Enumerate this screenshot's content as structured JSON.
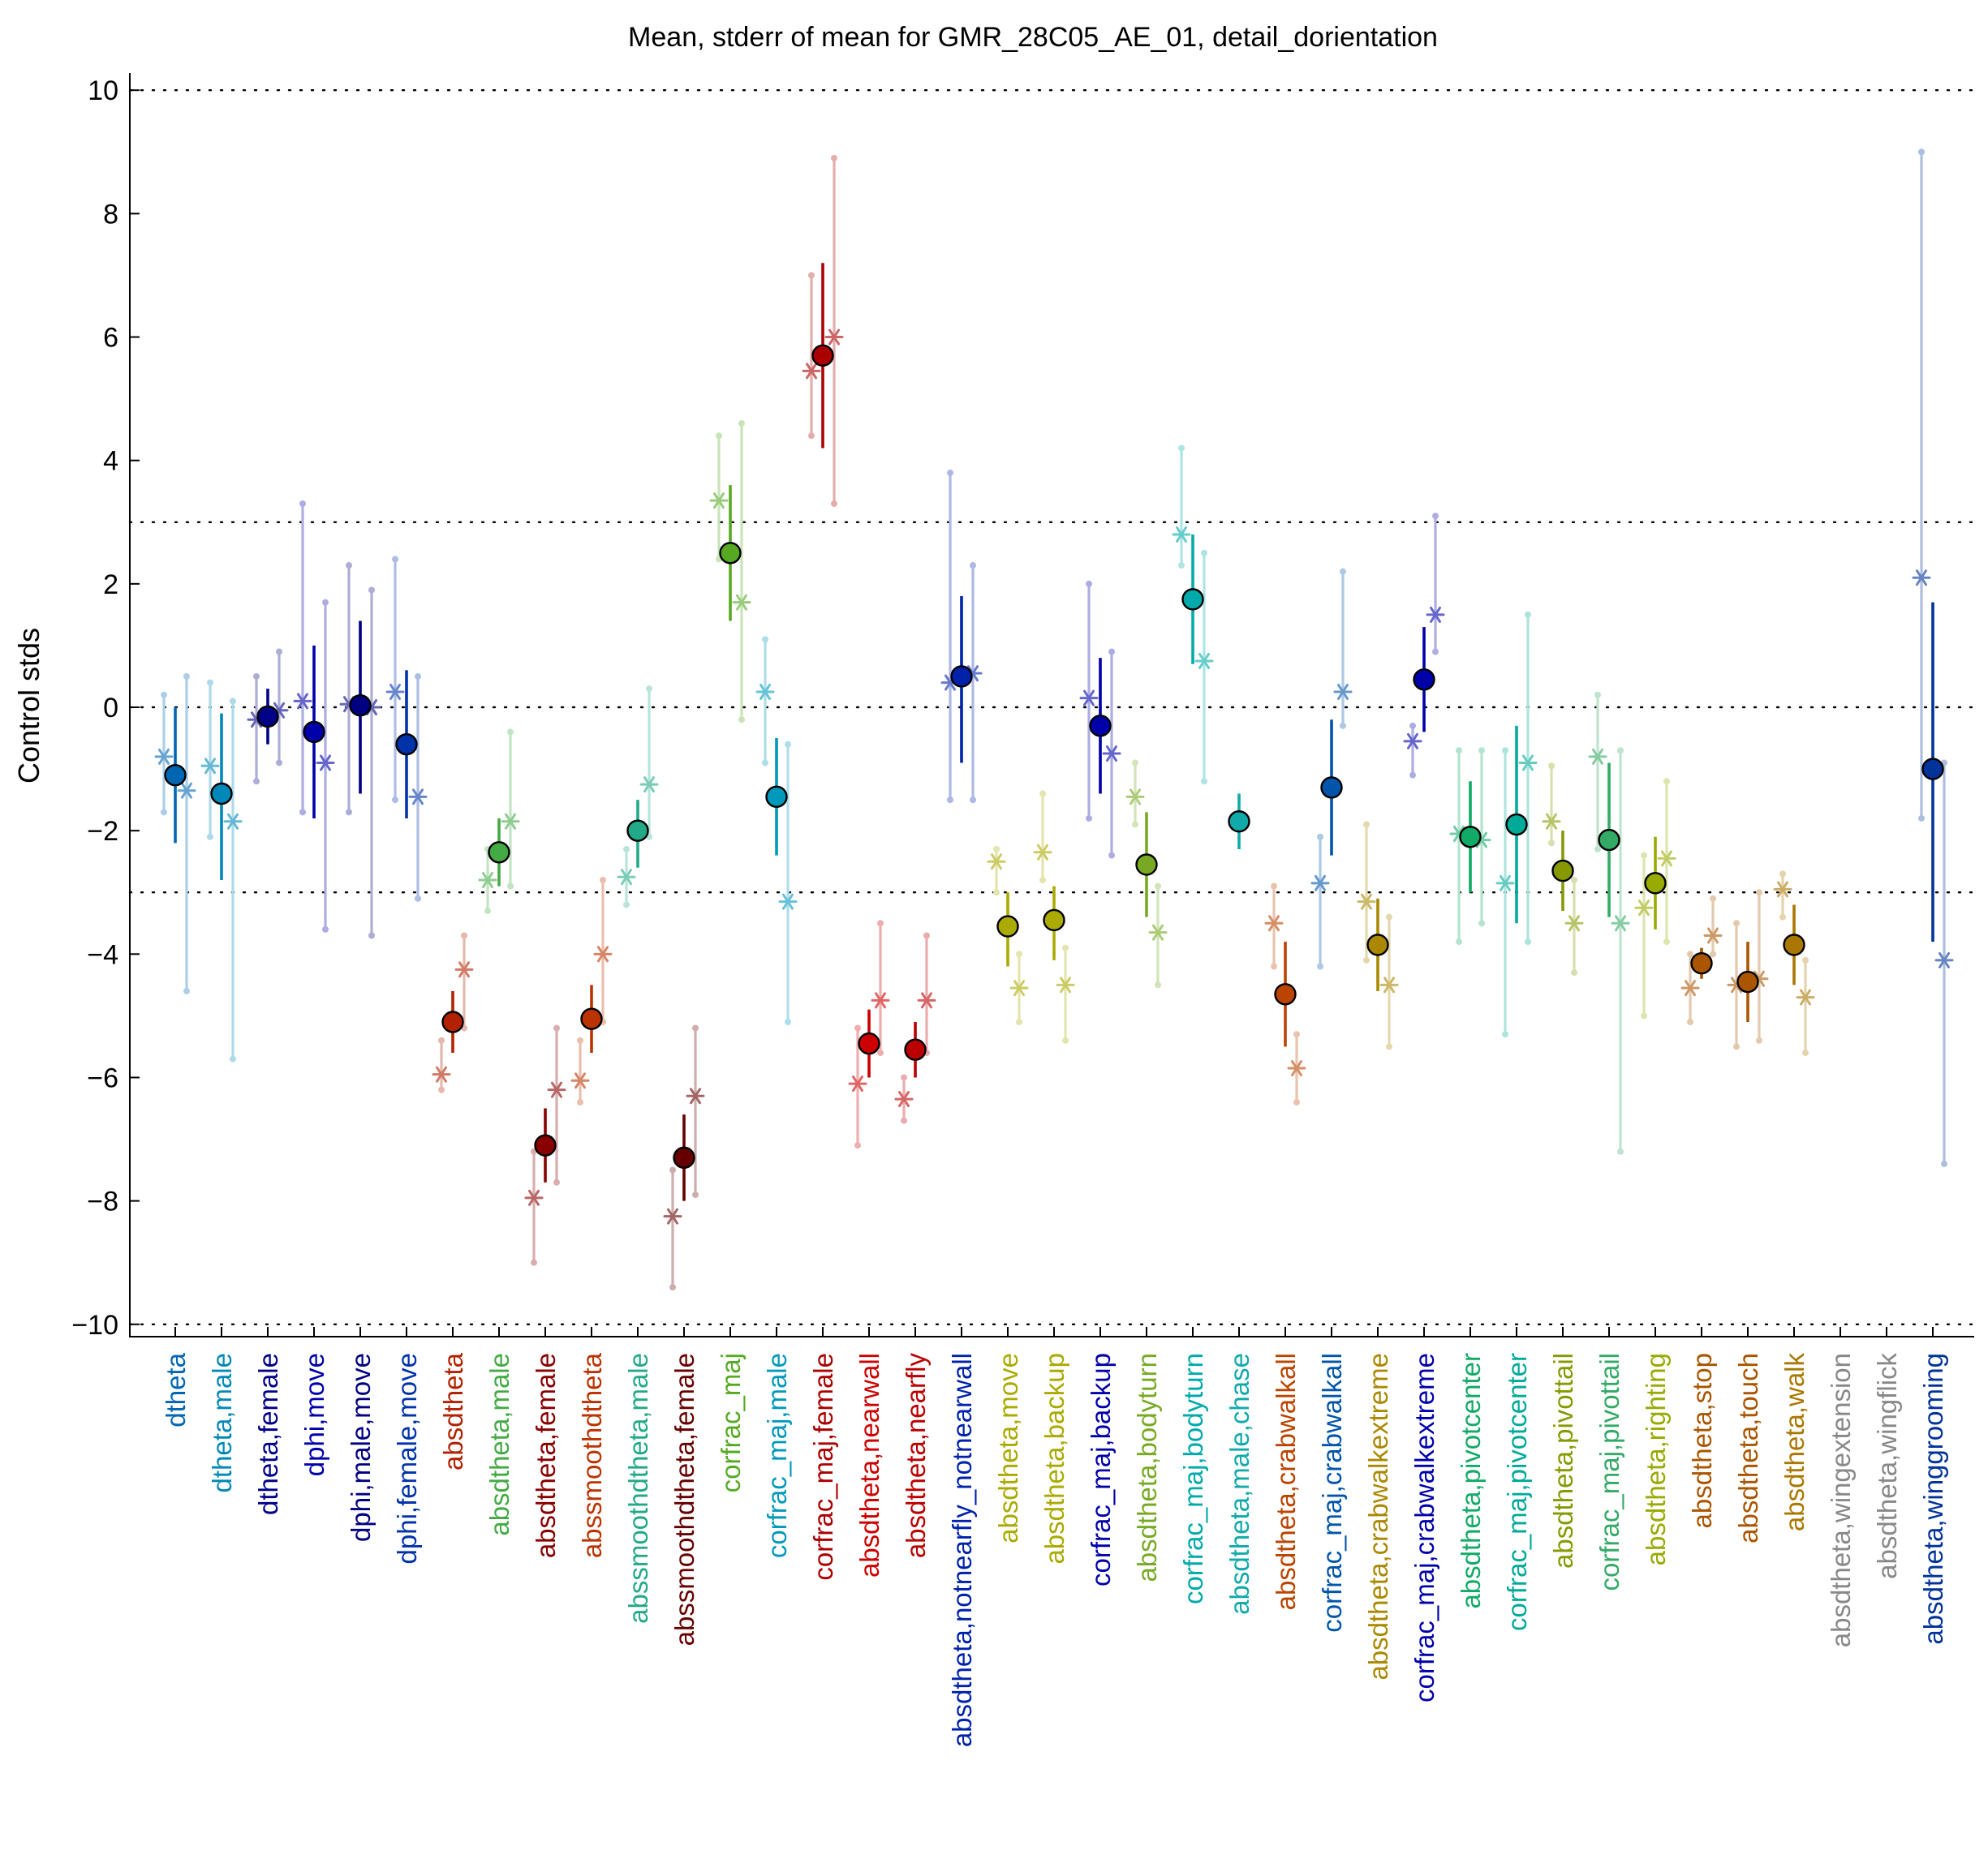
{
  "chart_data": {
    "type": "scatter",
    "title": "Mean, stderr of mean for GMR_28C05_AE_01, detail_dorientation",
    "ylabel": "Control stds",
    "xlabel": "",
    "ylim": [
      -10.2,
      10.2
    ],
    "yticks": [
      -10,
      -8,
      -6,
      -4,
      -2,
      0,
      2,
      4,
      6,
      8,
      10
    ],
    "ytick_labels": [
      "−10",
      "−8",
      "−6",
      "−4",
      "−2",
      "0",
      "2",
      "4",
      "6",
      "8",
      "10"
    ],
    "reference_lines": [
      -10,
      -3,
      0,
      3,
      10
    ],
    "grid": "dotted horizontal lines",
    "categories": [
      "dtheta",
      "dtheta,male",
      "dtheta,female",
      "dphi,move",
      "dphi,male,move",
      "dphi,female,move",
      "absdtheta",
      "absdtheta,male",
      "absdtheta,female",
      "abssmoothdtheta",
      "abssmoothdtheta,male",
      "abssmoothdtheta,female",
      "corfrac_maj",
      "corfrac_maj,male",
      "corfrac_maj,female",
      "absdtheta,nearwall",
      "absdtheta,nearfly",
      "absdtheta,notnearfly_notnearwall",
      "absdtheta,move",
      "absdtheta,backup",
      "corfrac_maj,backup",
      "absdtheta,bodyturn",
      "corfrac_maj,bodyturn",
      "absdtheta,male,chase",
      "absdtheta,crabwalkall",
      "corfrac_maj,crabwalkall",
      "absdtheta,crabwalkextreme",
      "corfrac_maj,crabwalkextreme",
      "absdtheta,pivotcenter",
      "corfrac_maj,pivotcenter",
      "absdtheta,pivottail",
      "corfrac_maj,pivottail",
      "absdtheta,righting",
      "absdtheta,stop",
      "absdtheta,touch",
      "absdtheta,walk",
      "absdtheta,wingextension",
      "absdtheta,wingflick",
      "absdtheta,winggrooming"
    ],
    "colors": [
      "#0066b3",
      "#0088b8",
      "#000088",
      "#0000aa",
      "#000080",
      "#0033aa",
      "#b22200",
      "#44aa44",
      "#880000",
      "#bb3300",
      "#22aa88",
      "#660000",
      "#55aa22",
      "#0099bb",
      "#aa0000",
      "#cc0000",
      "#bb0000",
      "#0022aa",
      "#aaaa00",
      "#aaaa00",
      "#0000aa",
      "#77aa22",
      "#00aaaa",
      "#11aaaa",
      "#bb4400",
      "#0055aa",
      "#aa8800",
      "#0000aa",
      "#11aa66",
      "#00aa99",
      "#889900",
      "#33aa66",
      "#99aa00",
      "#aa5500",
      "#aa5500",
      "#aa7700",
      "#888888",
      "#888888",
      "#003399"
    ],
    "series": [
      {
        "marker": "circle",
        "values": [
          -1.1,
          -1.4,
          -0.15,
          -0.4,
          0.03,
          -0.6,
          -5.1,
          -2.35,
          -7.1,
          -5.05,
          -2.0,
          -7.3,
          2.5,
          -1.45,
          5.7,
          -5.45,
          -5.55,
          0.5,
          -3.55,
          -3.45,
          -0.3,
          -2.55,
          1.75,
          -1.85,
          -4.65,
          -1.3,
          -3.85,
          0.45,
          -2.1,
          -1.9,
          -2.65,
          -2.15,
          -2.85,
          -4.15,
          -4.45,
          -3.85,
          null,
          null,
          -1.0
        ],
        "err_low": [
          -2.2,
          -2.8,
          -0.6,
          -1.8,
          -1.4,
          -1.8,
          -5.6,
          -2.9,
          -7.7,
          -5.6,
          -2.6,
          -8.0,
          1.4,
          -2.4,
          4.2,
          -6.0,
          -6.0,
          -0.9,
          -4.2,
          -4.1,
          -1.4,
          -3.4,
          0.7,
          -2.3,
          -5.5,
          -2.4,
          -4.6,
          -0.4,
          -3.0,
          -3.5,
          -3.3,
          -3.4,
          -3.6,
          -4.4,
          -5.1,
          -4.5,
          null,
          null,
          -3.8
        ],
        "err_high": [
          0.0,
          -0.1,
          0.3,
          1.0,
          1.4,
          0.6,
          -4.6,
          -1.8,
          -6.5,
          -4.5,
          -1.5,
          -6.6,
          3.6,
          -0.5,
          7.2,
          -4.9,
          -5.1,
          1.8,
          -3.0,
          -2.9,
          0.8,
          -1.7,
          2.8,
          -1.4,
          -3.8,
          -0.2,
          -3.1,
          1.3,
          -1.2,
          -0.3,
          -2.0,
          -0.9,
          -2.1,
          -3.9,
          -3.8,
          -3.2,
          null,
          null,
          1.7
        ]
      },
      {
        "marker": "asterisk",
        "values": [
          -0.8,
          -0.95,
          -0.2,
          0.1,
          0.05,
          0.25,
          -5.95,
          -2.8,
          -7.95,
          -6.05,
          -2.75,
          -8.25,
          3.35,
          0.25,
          5.45,
          -6.1,
          -6.35,
          0.4,
          -2.5,
          -2.35,
          0.15,
          -1.45,
          2.8,
          null,
          -3.5,
          -2.85,
          -3.15,
          -0.55,
          -2.05,
          -2.85,
          -1.85,
          -0.8,
          -3.25,
          -4.55,
          -4.5,
          -2.95,
          null,
          null,
          2.1
        ],
        "err_low": [
          -1.7,
          -2.1,
          -1.2,
          -1.7,
          -1.7,
          -1.5,
          -6.2,
          -3.3,
          -9.0,
          -6.4,
          -3.2,
          -9.4,
          2.4,
          -0.9,
          4.4,
          -7.1,
          -6.7,
          -1.5,
          -3.0,
          -2.8,
          -1.8,
          -1.9,
          2.3,
          null,
          -4.2,
          -4.2,
          -4.1,
          -1.1,
          -3.8,
          -5.3,
          -2.2,
          -2.3,
          -5.0,
          -5.1,
          -5.5,
          -3.4,
          null,
          null,
          -1.8
        ],
        "err_high": [
          0.2,
          0.4,
          0.5,
          3.3,
          2.3,
          2.4,
          -5.4,
          -2.3,
          -7.2,
          -5.4,
          -2.3,
          -7.5,
          4.4,
          1.1,
          7.0,
          -5.2,
          -6.0,
          3.8,
          -2.3,
          -1.4,
          2.0,
          -0.9,
          4.2,
          null,
          -2.9,
          -2.1,
          -1.9,
          -0.3,
          -0.7,
          -0.7,
          -0.95,
          0.2,
          -2.4,
          -4.0,
          -3.5,
          -2.7,
          null,
          null,
          9.0
        ]
      },
      {
        "marker": "asterisk",
        "values": [
          -1.35,
          -1.85,
          -0.05,
          -0.9,
          0.0,
          -1.45,
          -4.25,
          -1.85,
          -6.2,
          -4.0,
          -1.25,
          -6.3,
          1.7,
          -3.15,
          6.0,
          -4.75,
          -4.75,
          0.55,
          -4.55,
          -4.5,
          -0.75,
          -3.65,
          0.75,
          null,
          -5.85,
          0.25,
          -4.5,
          1.5,
          -2.15,
          -0.9,
          -3.5,
          -3.5,
          -2.45,
          -3.7,
          -4.4,
          -4.7,
          null,
          null,
          -4.1
        ],
        "err_low": [
          -4.6,
          -5.7,
          -0.9,
          -3.6,
          -3.7,
          -3.1,
          -5.2,
          -2.9,
          -7.7,
          -5.1,
          -2.1,
          -7.9,
          -0.2,
          -5.1,
          3.3,
          -5.6,
          -5.6,
          -1.5,
          -5.1,
          -5.4,
          -2.4,
          -4.5,
          -1.2,
          null,
          -6.4,
          -0.3,
          -5.5,
          0.9,
          -3.5,
          -3.8,
          -4.3,
          -7.2,
          -3.8,
          -4.0,
          -5.4,
          -5.6,
          null,
          null,
          -7.4
        ],
        "err_high": [
          0.5,
          0.1,
          0.9,
          1.7,
          1.9,
          0.5,
          -3.7,
          -0.4,
          -5.2,
          -2.8,
          0.3,
          -5.2,
          4.6,
          -0.6,
          8.9,
          -3.5,
          -3.7,
          2.3,
          -4.0,
          -3.9,
          0.9,
          -2.9,
          2.5,
          null,
          -5.3,
          2.2,
          -3.4,
          3.1,
          -0.7,
          1.5,
          -2.8,
          -0.7,
          -1.2,
          -3.1,
          -3.0,
          -4.1,
          null,
          null,
          -0.9
        ]
      }
    ]
  }
}
